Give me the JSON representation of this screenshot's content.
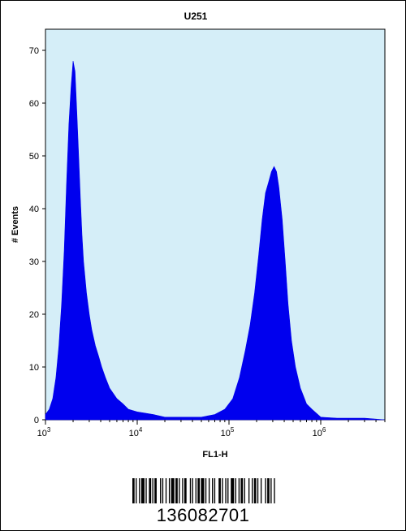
{
  "chart_data": {
    "type": "histogram",
    "title": "U251",
    "xlabel": "FL1-H",
    "ylabel": "# Events",
    "x_scale": "log",
    "xlim": [
      1000,
      5000000
    ],
    "ylim": [
      0,
      74
    ],
    "yticks": [
      "0",
      "10",
      "20",
      "30",
      "40",
      "50",
      "60",
      "70"
    ],
    "xticks": [
      {
        "base": "10",
        "exp": "3"
      },
      {
        "base": "10",
        "exp": "4"
      },
      {
        "base": "10",
        "exp": "5"
      },
      {
        "base": "10",
        "exp": "6"
      }
    ],
    "fill_color": "#0000ee",
    "plot_background": "#d5eef8",
    "x": [
      1000,
      1100,
      1200,
      1300,
      1400,
      1500,
      1600,
      1700,
      1800,
      1900,
      2000,
      2100,
      2200,
      2300,
      2400,
      2500,
      2600,
      2800,
      3000,
      3200,
      3500,
      3800,
      4100,
      4500,
      5000,
      6000,
      7000,
      8000,
      10000,
      15000,
      20000,
      30000,
      50000,
      70000,
      90000,
      110000,
      130000,
      150000,
      170000,
      190000,
      210000,
      230000,
      250000,
      270000,
      290000,
      310000,
      330000,
      350000,
      380000,
      410000,
      440000,
      480000,
      530000,
      600000,
      700000,
      800000,
      1000000,
      1500000,
      2000000,
      3000000,
      5000000
    ],
    "y": [
      1,
      2,
      4,
      8,
      14,
      22,
      32,
      45,
      56,
      63,
      68,
      66,
      58,
      50,
      42,
      35,
      30,
      24,
      20,
      17,
      14,
      12,
      10,
      8,
      6,
      4,
      3,
      2,
      1.5,
      1,
      0.5,
      0.5,
      0.5,
      1,
      2,
      4,
      8,
      13,
      18,
      24,
      31,
      38,
      43,
      45,
      47,
      48,
      47,
      44,
      38,
      30,
      22,
      15,
      10,
      6,
      3,
      2,
      0.5,
      0.3,
      0.3,
      0.3,
      0
    ]
  },
  "barcode": {
    "number": "136082701",
    "bars": [
      2,
      1,
      1,
      2,
      1,
      1,
      3,
      1,
      1,
      2,
      2,
      1,
      1,
      1,
      2,
      3,
      1,
      1,
      1,
      2,
      1,
      2,
      1,
      1,
      3,
      1,
      2,
      1,
      1,
      2,
      1,
      1,
      2,
      3,
      1,
      1,
      1,
      2,
      1,
      1,
      2,
      1,
      3,
      1,
      1,
      2,
      1,
      2,
      1,
      1,
      1,
      3,
      2,
      1,
      1,
      2,
      1,
      1,
      1,
      2,
      3,
      1,
      1,
      2,
      1,
      1,
      2,
      1,
      1,
      3,
      1,
      2,
      1,
      1,
      2,
      1,
      1,
      2,
      1,
      3,
      1,
      1,
      2,
      1,
      1,
      2,
      1,
      1
    ]
  }
}
